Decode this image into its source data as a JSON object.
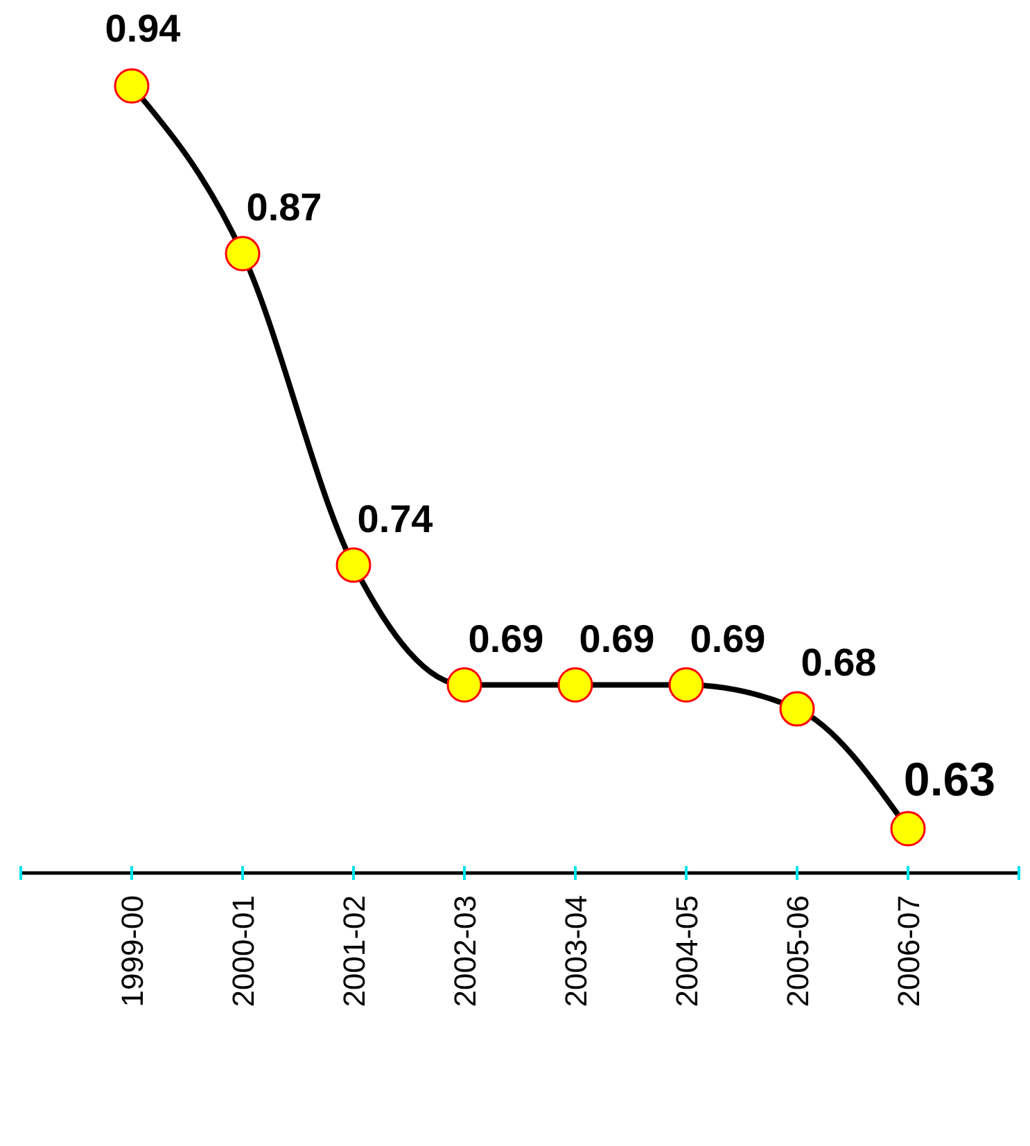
{
  "chart_data": {
    "type": "line",
    "categories": [
      "1999-00",
      "2000-01",
      "2001-02",
      "2002-03",
      "2003-04",
      "2004-05",
      "2005-06",
      "2006-07"
    ],
    "series": [
      {
        "color": "#000000",
        "values": [
          0.94,
          0.87,
          0.74,
          0.69,
          0.69,
          0.69,
          0.68,
          0.63
        ]
      }
    ],
    "data_labels": true,
    "marker": "circle",
    "line_style": "solid",
    "grid": false
  }
}
